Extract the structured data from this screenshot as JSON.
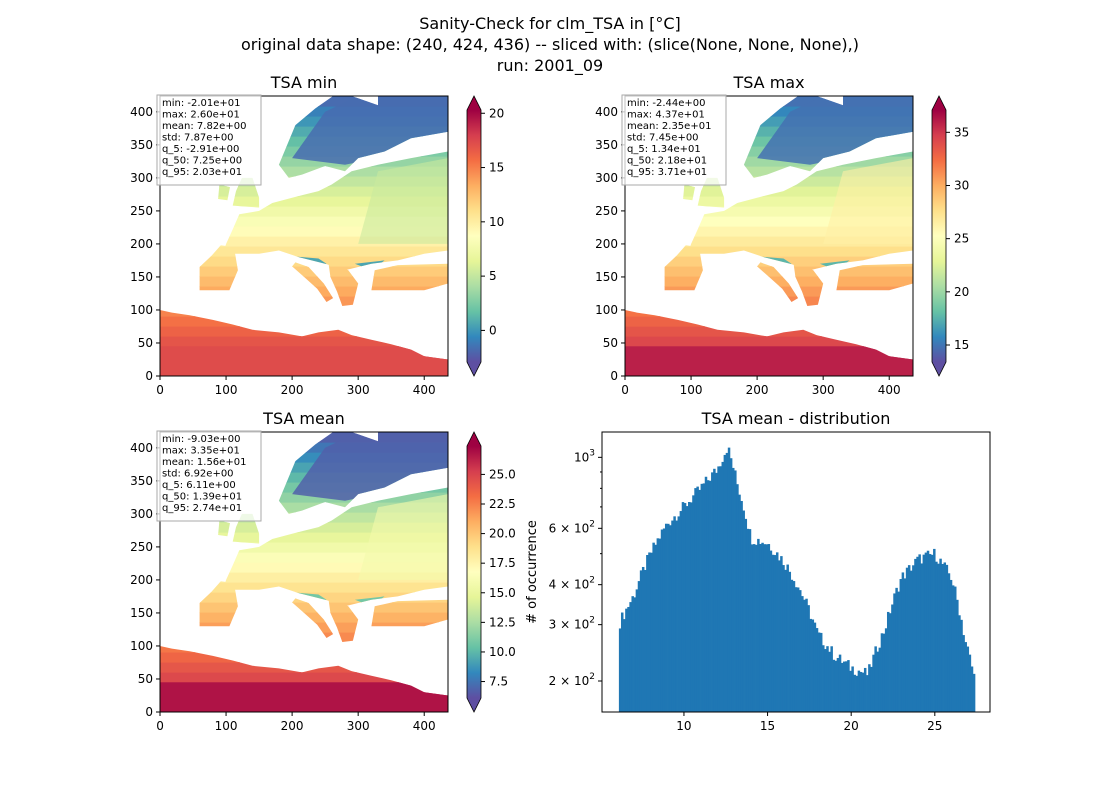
{
  "suptitle": {
    "line1": "Sanity-Check for clm_TSA in [°C]",
    "line2": "original data shape: (240, 424, 436) -- sliced with: (slice(None, None, None),)",
    "line3": "run: 2001_09"
  },
  "colormap": [
    "#5e4fa2",
    "#3288bd",
    "#66c2a5",
    "#abdda4",
    "#e6f598",
    "#ffffbf",
    "#fee08b",
    "#fdae61",
    "#f46d43",
    "#d53e4f",
    "#9e0142"
  ],
  "chart_data": [
    {
      "type": "heatmap",
      "title": "TSA min",
      "x_ticks": [
        0,
        100,
        200,
        300,
        400
      ],
      "y_ticks": [
        0,
        50,
        100,
        150,
        200,
        250,
        300,
        350,
        400
      ],
      "xlim": [
        0,
        436
      ],
      "ylim": [
        0,
        424
      ],
      "colorbar": {
        "vmin": -2.91,
        "vmax": 20.3,
        "ticks": [
          0,
          5,
          10,
          15,
          20
        ],
        "tick_labels": [
          "0",
          "5",
          "10",
          "15",
          "20"
        ],
        "extend": "both"
      },
      "stats": [
        "min: -2.01e+01",
        "max: 2.60e+01",
        "mean: 7.82e+00",
        "std: 7.87e+00",
        "q_5: -2.91e+00",
        "q_50: 7.25e+00",
        "q_95: 2.03e+01"
      ]
    },
    {
      "type": "heatmap",
      "title": "TSA max",
      "x_ticks": [
        0,
        100,
        200,
        300,
        400
      ],
      "y_ticks": [
        0,
        50,
        100,
        150,
        200,
        250,
        300,
        350,
        400
      ],
      "xlim": [
        0,
        436
      ],
      "ylim": [
        0,
        424
      ],
      "colorbar": {
        "vmin": 13.4,
        "vmax": 37.1,
        "ticks": [
          15,
          20,
          25,
          30,
          35
        ],
        "tick_labels": [
          "15",
          "20",
          "25",
          "30",
          "35"
        ],
        "extend": "both"
      },
      "stats": [
        "min: -2.44e+00",
        "max: 4.37e+01",
        "mean: 2.35e+01",
        "std: 7.45e+00",
        "q_5: 1.34e+01",
        "q_50: 2.18e+01",
        "q_95: 3.71e+01"
      ]
    },
    {
      "type": "heatmap",
      "title": "TSA mean",
      "x_ticks": [
        0,
        100,
        200,
        300,
        400
      ],
      "y_ticks": [
        0,
        50,
        100,
        150,
        200,
        250,
        300,
        350,
        400
      ],
      "xlim": [
        0,
        436
      ],
      "ylim": [
        0,
        424
      ],
      "colorbar": {
        "vmin": 6.11,
        "vmax": 27.4,
        "ticks": [
          7.5,
          10,
          12.5,
          15,
          17.5,
          20,
          22.5,
          25
        ],
        "tick_labels": [
          "7.5",
          "10.0",
          "12.5",
          "15.0",
          "17.5",
          "20.0",
          "22.5",
          "25.0"
        ],
        "extend": "both"
      },
      "stats": [
        "min: -9.03e+00",
        "max: 3.35e+01",
        "mean: 1.56e+01",
        "std: 6.92e+00",
        "q_5: 6.11e+00",
        "q_50: 1.39e+01",
        "q_95: 2.74e+01"
      ]
    },
    {
      "type": "bar",
      "title": "TSA mean - distribution",
      "ylabel": "# of occurrence",
      "xlabel": "",
      "yscale": "log",
      "xlim": [
        5.1,
        28.3
      ],
      "ylim": [
        160,
        1200
      ],
      "x_ticks": [
        10,
        15,
        20,
        25
      ],
      "y_ticks": [
        200,
        300,
        400,
        600,
        1000
      ],
      "y_tick_labels": [
        {
          "base": "2 × 10",
          "exp": "2"
        },
        {
          "base": "3 × 10",
          "exp": "2"
        },
        {
          "base": "4 × 10",
          "exp": "2"
        },
        {
          "base": "6 × 10",
          "exp": "2"
        },
        {
          "base": "10",
          "exp": "3"
        }
      ],
      "bar_color": "#1f77b4",
      "x_start": 6.11,
      "x_end": 27.4,
      "anchors": [
        [
          6.1,
          300
        ],
        [
          7.0,
          370
        ],
        [
          8.0,
          500
        ],
        [
          9.0,
          620
        ],
        [
          10.0,
          700
        ],
        [
          11.0,
          800
        ],
        [
          12.0,
          920
        ],
        [
          12.6,
          1080
        ],
        [
          13.2,
          820
        ],
        [
          14.0,
          560
        ],
        [
          15.0,
          540
        ],
        [
          16.0,
          470
        ],
        [
          17.0,
          380
        ],
        [
          18.0,
          280
        ],
        [
          19.0,
          240
        ],
        [
          20.0,
          220
        ],
        [
          21.0,
          210
        ],
        [
          22.0,
          290
        ],
        [
          23.0,
          420
        ],
        [
          24.0,
          480
        ],
        [
          25.0,
          500
        ],
        [
          26.0,
          420
        ],
        [
          26.8,
          270
        ],
        [
          27.4,
          200
        ]
      ]
    }
  ]
}
